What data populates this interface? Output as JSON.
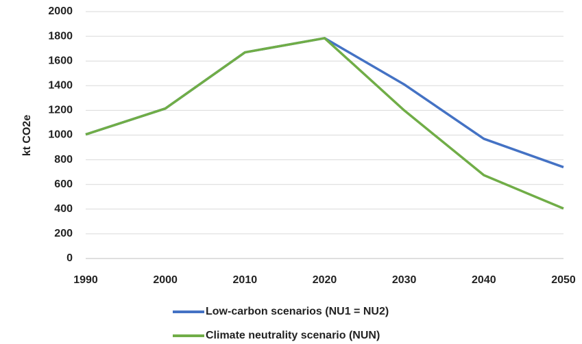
{
  "chart_data": {
    "type": "line",
    "y_label": "kt CO2e",
    "x": [
      1990,
      2000,
      2010,
      2020,
      2030,
      2040,
      2050
    ],
    "series": [
      {
        "name": "Low-carbon scenarios (NU1 = NU2)",
        "color": "#4472c4",
        "values": [
          1005,
          1215,
          1670,
          1785,
          1410,
          970,
          740
        ]
      },
      {
        "name": "Climate neutrality scenario (NUN)",
        "color": "#70ad47",
        "values": [
          1005,
          1215,
          1670,
          1785,
          1200,
          675,
          405
        ]
      }
    ],
    "xlim": [
      1990,
      2050
    ],
    "xticks": [
      1990,
      2000,
      2010,
      2020,
      2030,
      2040,
      2050
    ],
    "ylim": [
      0,
      2000
    ],
    "yticks": [
      0,
      200,
      400,
      600,
      800,
      1000,
      1200,
      1400,
      1600,
      1800,
      2000
    ],
    "grid": true,
    "legend": "bottom"
  }
}
